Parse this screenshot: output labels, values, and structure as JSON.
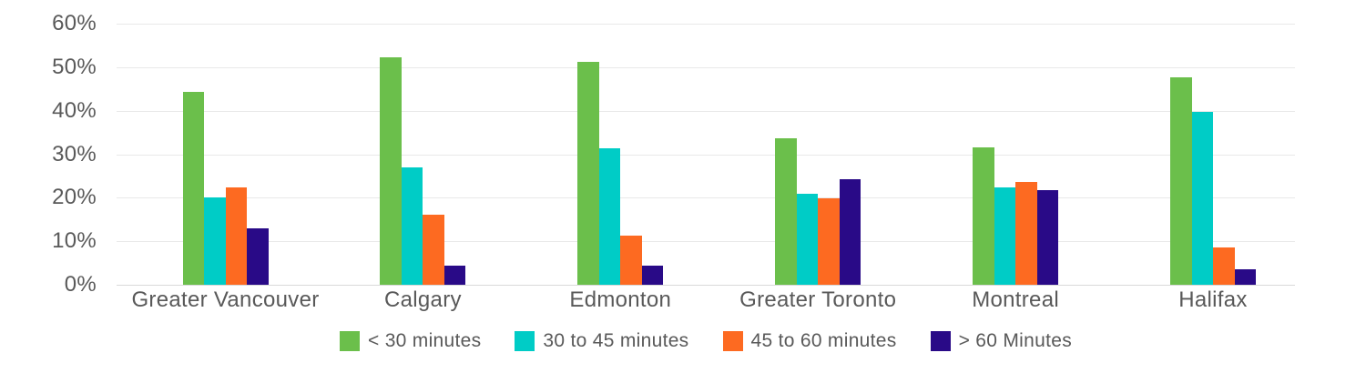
{
  "chart_data": {
    "type": "bar",
    "title": "",
    "xlabel": "",
    "ylabel": "",
    "categories": [
      "Greater Vancouver",
      "Calgary",
      "Edmonton",
      "Greater Toronto",
      "Montreal",
      "Halifax"
    ],
    "series": [
      {
        "name": "< 30 minutes",
        "color": "#6bbf4b",
        "values": [
          44.4,
          52.2,
          51.3,
          33.7,
          31.6,
          47.6
        ]
      },
      {
        "name": "30 to 45 minutes",
        "color": "#00ccc6",
        "values": [
          20.0,
          26.9,
          31.4,
          20.9,
          22.3,
          39.8
        ]
      },
      {
        "name": "45 to 60 minutes",
        "color": "#fd6a21",
        "values": [
          22.3,
          16.1,
          11.3,
          19.9,
          23.7,
          8.5
        ]
      },
      {
        "name": "> 60 Minutes",
        "color": "#290a87",
        "values": [
          12.9,
          4.3,
          4.4,
          24.2,
          21.7,
          3.5
        ]
      }
    ],
    "ylim": [
      0,
      60
    ],
    "ytick_labels": [
      "0%",
      "10%",
      "20%",
      "30%",
      "40%",
      "50%",
      "60%"
    ],
    "grid": true,
    "legend_position": "bottom",
    "colors": {
      "text": "#595959",
      "gridline": "#e9e9e9",
      "axis_line": "#d9d9d9",
      "background": "#ffffff"
    }
  }
}
